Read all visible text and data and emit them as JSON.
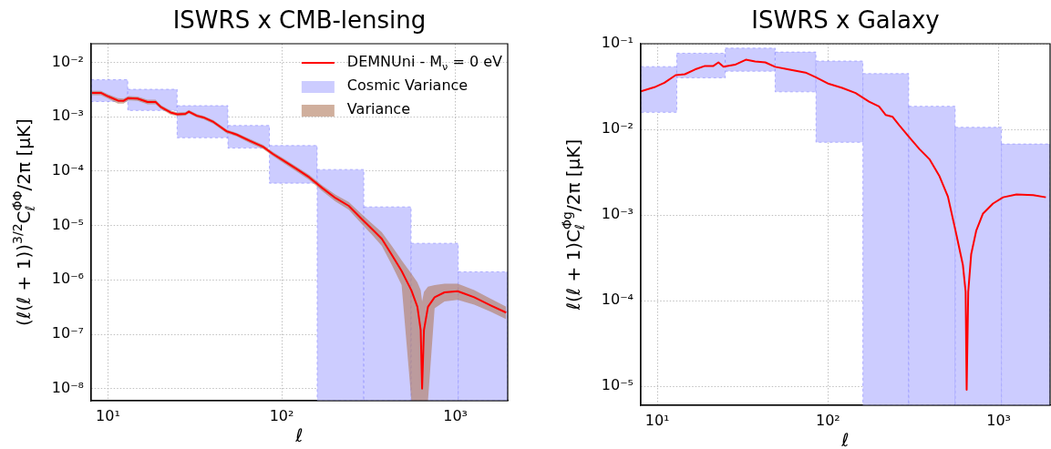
{
  "chart_data": [
    {
      "type": "line",
      "title": "ISWRS x CMB-lensing",
      "xlabel": "ℓ",
      "ylabel": "(ℓ(ℓ + 1))$^{3/2}$C$_{ℓ}$$^{Φ̇Φ}$/2π [μK]",
      "log": "xy",
      "grid": true,
      "legend": "top right",
      "xlim": [
        8,
        2000
      ],
      "ylim": [
        6e-09,
        0.022
      ],
      "xticks": [
        {
          "value": 10,
          "label": "10¹"
        },
        {
          "value": 100,
          "label": "10²"
        },
        {
          "value": 1000,
          "label": "10³"
        }
      ],
      "yticks": [
        {
          "value": 1e-08,
          "label": "10⁻⁸"
        },
        {
          "value": 1e-07,
          "label": "10⁻⁷"
        },
        {
          "value": 1e-06,
          "label": "10⁻⁶"
        },
        {
          "value": 1e-05,
          "label": "10⁻⁵"
        },
        {
          "value": 0.0001,
          "label": "10⁻⁴"
        },
        {
          "value": 0.001,
          "label": "10⁻³"
        },
        {
          "value": 0.01,
          "label": "10⁻²"
        }
      ],
      "series": [
        {
          "type": "line",
          "name": "DEMNUni - M$_{ν}$ = 0 eV",
          "color": "#ff0000",
          "x": [
            8.1,
            9.1,
            10,
            11.4,
            12.3,
            13.1,
            14.8,
            16.9,
            18.8,
            20.1,
            22.9,
            25.1,
            27.9,
            29.2,
            32.5,
            35.5,
            40.5,
            48.2,
            55,
            65.5,
            78,
            88.9,
            101,
            121,
            144,
            171,
            204,
            243,
            290,
            330,
            377,
            430,
            490,
            558,
            604,
            631,
            643,
            659,
            695,
            759,
            865,
            1030,
            1282,
            1596,
            1960
          ],
          "values": [
            0.00275,
            0.00275,
            0.00237,
            0.00198,
            0.00196,
            0.0022,
            0.00215,
            0.00187,
            0.00186,
            0.00152,
            0.0012,
            0.00111,
            0.00113,
            0.00124,
            0.00104,
            0.00097,
            0.0008,
            0.00054,
            0.00047,
            0.00036,
            0.00028,
            0.000207,
            0.00016,
            0.000111,
            7.7e-05,
            4.9e-05,
            3.2e-05,
            2.3e-05,
            1.3e-05,
            8.7e-06,
            5.7e-06,
            2.9e-06,
            1.46e-06,
            6.4e-07,
            3.2e-07,
            1.2e-07,
            1e-08,
            1.2e-07,
            3.2e-07,
            4.8e-07,
            5.9e-07,
            6.2e-07,
            4.8e-07,
            3.4e-07,
            2.5e-07
          ]
        },
        {
          "type": "histogram",
          "name": "Cosmic Variance",
          "color": "#ccccff",
          "bins": [
            8,
            13,
            25,
            49,
            85,
            160,
            297,
            556,
            1038,
            2000
          ],
          "base": [
            0.0019,
            0.0013,
            0.00041,
            0.000265,
            6e-05,
            6e-09,
            6e-09,
            6e-09,
            6e-09
          ],
          "values": [
            0.0029,
            0.0019,
            0.00119,
            0.000425,
            0.000235,
            0.000106994,
            2.19994e-05,
            4.699994e-06,
            1.399994e-06
          ]
        },
        {
          "type": "line",
          "name": "Variance",
          "color": "#b07a5c",
          "x": [
            8.1,
            9.1,
            10,
            11.4,
            12.3,
            13.1,
            14.8,
            16.9,
            18.8,
            20.1,
            22.9,
            25.1,
            27.9,
            29.2,
            32.5,
            35.5,
            40.5,
            48.2,
            55,
            65.5,
            78,
            88.9,
            101,
            121,
            144,
            171,
            204,
            243,
            290,
            330,
            377,
            430,
            490,
            558,
            604,
            631,
            643,
            659,
            695,
            759,
            865,
            1030,
            1282,
            1596,
            1960
          ],
          "values": [
            null,
            null,
            null,
            null,
            null,
            null,
            null,
            null,
            null,
            null,
            null,
            null,
            null,
            null,
            null,
            null,
            null,
            null,
            null,
            null,
            null,
            null,
            null,
            null,
            null,
            null,
            null,
            null,
            null,
            null,
            null,
            null,
            null,
            null,
            null,
            null,
            null,
            null,
            null,
            null,
            null,
            null,
            null,
            null,
            null
          ],
          "lower": [
            0.0025,
            0.0025,
            0.00215,
            0.00175,
            0.00175,
            0.002,
            0.00195,
            0.0017,
            0.0017,
            0.0014,
            0.0011,
            0.00103,
            0.00105,
            0.00115,
            0.00097,
            0.0009,
            0.00074,
            0.0005,
            0.000435,
            0.00033,
            0.000255,
            0.00019,
            0.000145,
            0.0001,
            6.9e-05,
            4.3e-05,
            2.75e-05,
            1.95e-05,
            1.05e-05,
            6.8e-06,
            4.2e-06,
            1.9e-06,
            8e-07,
            6e-09,
            6e-09,
            6e-09,
            6e-09,
            6e-09,
            6e-09,
            3e-07,
            4e-07,
            4.3e-07,
            3.5e-07,
            2.6e-07,
            1.9e-07
          ],
          "upper": [
            0.003,
            0.003,
            0.0026,
            0.0022,
            0.00215,
            0.0024,
            0.00235,
            0.00205,
            0.00205,
            0.00165,
            0.0013,
            0.0012,
            0.00122,
            0.00133,
            0.00112,
            0.00104,
            0.00086,
            0.00058,
            0.000505,
            0.00039,
            0.000305,
            0.000225,
            0.000175,
            0.000122,
            8.5e-05,
            5.5e-05,
            3.7e-05,
            2.7e-05,
            1.6e-05,
            1.1e-05,
            7.5e-06,
            4.2e-06,
            2.3e-06,
            1.3e-06,
            9e-07,
            6.5e-07,
            4e-07,
            6e-07,
            7.5e-07,
            8e-07,
            8.5e-07,
            8.5e-07,
            6.5e-07,
            4.5e-07,
            3.2e-07
          ]
        }
      ]
    },
    {
      "type": "line",
      "title": "ISWRS x Galaxy",
      "xlabel": "ℓ",
      "ylabel": "ℓ(ℓ + 1)C$_{ℓ}$$^{Φ̇g}$/2π [μK]",
      "log": "xy",
      "grid": true,
      "xlim": [
        8,
        2000
      ],
      "ylim": [
        6e-06,
        0.1
      ],
      "xticks": [
        {
          "value": 10,
          "label": "10¹"
        },
        {
          "value": 100,
          "label": "10²"
        },
        {
          "value": 1000,
          "label": "10³"
        }
      ],
      "yticks": [
        {
          "value": 1e-05,
          "label": "10⁻⁵"
        },
        {
          "value": 0.0001,
          "label": "10⁻⁴"
        },
        {
          "value": 0.001,
          "label": "10⁻³"
        },
        {
          "value": 0.01,
          "label": "10⁻²"
        },
        {
          "value": 0.1,
          "label": "10⁻¹"
        }
      ],
      "series": [
        {
          "type": "histogram",
          "color": "#ccccff",
          "bins": [
            8,
            13,
            25,
            49,
            85,
            160,
            297,
            556,
            1038,
            2000
          ],
          "base": [
            0.0158,
            0.04,
            0.0477,
            0.0274,
            0.00706,
            6e-06,
            6e-06,
            6e-06,
            6e-06
          ],
          "values": [
            0.0382,
            0.0374,
            0.0411,
            0.0526,
            0.05574,
            0.044794,
            0.018594,
            0.010564,
            0.006744
          ]
        },
        {
          "type": "line",
          "color": "#ff0000",
          "x": [
            8,
            9.6,
            11,
            12.8,
            14.5,
            16.6,
            19,
            21.3,
            22.8,
            24.4,
            28.5,
            33,
            37.4,
            42.9,
            49,
            58.8,
            73.8,
            84.4,
            101,
            121,
            145,
            174,
            199,
            218,
            239,
            261,
            299,
            343,
            393,
            450,
            504,
            564,
            617,
            640,
            649,
            663,
            690,
            739,
            809,
            926,
            1061,
            1271,
            1592,
            1890
          ],
          "values": [
            0.0278,
            0.031,
            0.035,
            0.043,
            0.044,
            0.05,
            0.055,
            0.055,
            0.0605,
            0.054,
            0.0568,
            0.065,
            0.062,
            0.0605,
            0.0537,
            0.05,
            0.046,
            0.0408,
            0.034,
            0.0305,
            0.0266,
            0.0211,
            0.0185,
            0.0147,
            0.014,
            0.0112,
            0.0081,
            0.0059,
            0.00448,
            0.00283,
            0.00164,
            0.0006,
            0.00026,
            0.000127,
            9.1e-06,
            0.000127,
            0.00035,
            0.00066,
            0.00104,
            0.00136,
            0.00161,
            0.00174,
            0.00171,
            0.00161
          ]
        }
      ]
    }
  ]
}
